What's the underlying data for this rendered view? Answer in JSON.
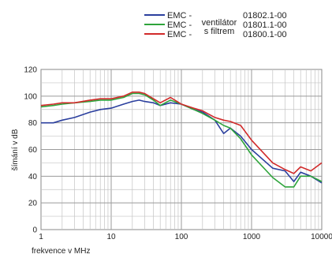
{
  "chart_data": {
    "type": "line",
    "xlabel": "frekvence v MHz",
    "ylabel": "šímání v dB",
    "xscale": "log",
    "xlim": [
      1,
      10000
    ],
    "ylim": [
      0,
      120
    ],
    "x_ticks": [
      "1",
      "10",
      "100",
      "1000",
      "10000"
    ],
    "y_ticks": [
      "0",
      "20",
      "40",
      "60",
      "80",
      "100",
      "120"
    ],
    "grid": true,
    "legend_position": "top-right",
    "legend_shared_labels": [
      "ventilátor",
      "s filtrem"
    ],
    "series": [
      {
        "name": "EMC -",
        "code": "01802.1-00",
        "color": "#2b3f9e",
        "points": [
          [
            1,
            80
          ],
          [
            1.5,
            80
          ],
          [
            2,
            82
          ],
          [
            3,
            84
          ],
          [
            5,
            88
          ],
          [
            7,
            90
          ],
          [
            10,
            91
          ],
          [
            15,
            94
          ],
          [
            20,
            96
          ],
          [
            25,
            97
          ],
          [
            30,
            96
          ],
          [
            40,
            95
          ],
          [
            50,
            93
          ],
          [
            70,
            95
          ],
          [
            100,
            94
          ],
          [
            150,
            90
          ],
          [
            200,
            88
          ],
          [
            300,
            82
          ],
          [
            400,
            72
          ],
          [
            500,
            76
          ],
          [
            700,
            70
          ],
          [
            1000,
            60
          ],
          [
            2000,
            46
          ],
          [
            3000,
            44
          ],
          [
            4000,
            36
          ],
          [
            5000,
            43
          ],
          [
            7000,
            40
          ],
          [
            10000,
            35
          ]
        ]
      },
      {
        "name": "EMC -",
        "code": "01801.1-00",
        "color": "#2ea43b",
        "points": [
          [
            1,
            92
          ],
          [
            1.5,
            93
          ],
          [
            2,
            94
          ],
          [
            3,
            95
          ],
          [
            5,
            96
          ],
          [
            7,
            97
          ],
          [
            10,
            97
          ],
          [
            15,
            99
          ],
          [
            20,
            102
          ],
          [
            25,
            102
          ],
          [
            30,
            101
          ],
          [
            40,
            97
          ],
          [
            50,
            93
          ],
          [
            70,
            97
          ],
          [
            100,
            94
          ],
          [
            150,
            90
          ],
          [
            200,
            87
          ],
          [
            300,
            82
          ],
          [
            400,
            78
          ],
          [
            500,
            76
          ],
          [
            700,
            68
          ],
          [
            1000,
            56
          ],
          [
            2000,
            39
          ],
          [
            3000,
            32
          ],
          [
            4000,
            32
          ],
          [
            5000,
            40
          ],
          [
            7000,
            40
          ],
          [
            10000,
            36
          ]
        ]
      },
      {
        "name": "EMC -",
        "code": "01800.1-00",
        "color": "#d12a2a",
        "points": [
          [
            1,
            93
          ],
          [
            1.5,
            94
          ],
          [
            2,
            95
          ],
          [
            3,
            95
          ],
          [
            5,
            97
          ],
          [
            7,
            98
          ],
          [
            10,
            98
          ],
          [
            15,
            100
          ],
          [
            20,
            103
          ],
          [
            25,
            103
          ],
          [
            30,
            102
          ],
          [
            40,
            98
          ],
          [
            50,
            95
          ],
          [
            70,
            99
          ],
          [
            100,
            94
          ],
          [
            150,
            91
          ],
          [
            200,
            89
          ],
          [
            300,
            84
          ],
          [
            400,
            82
          ],
          [
            500,
            81
          ],
          [
            700,
            78
          ],
          [
            1000,
            67
          ],
          [
            2000,
            50
          ],
          [
            3000,
            45
          ],
          [
            4000,
            42
          ],
          [
            5000,
            47
          ],
          [
            7000,
            44
          ],
          [
            10000,
            50
          ]
        ]
      }
    ]
  }
}
